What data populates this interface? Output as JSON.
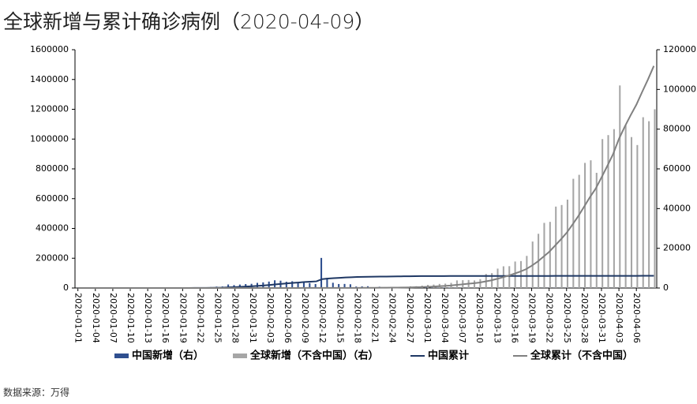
{
  "chart_data": {
    "type": "bar_line_dual",
    "title": "全球新增与累计确诊病例（2020-04-09）",
    "source": "数据来源：万得",
    "categories": [
      "2020-01-01",
      null,
      null,
      "2020-01-04",
      null,
      null,
      "2020-01-07",
      null,
      null,
      "2020-01-10",
      null,
      null,
      "2020-01-13",
      null,
      null,
      "2020-01-16",
      null,
      null,
      "2020-01-19",
      null,
      null,
      "2020-01-22",
      null,
      null,
      "2020-01-25",
      null,
      null,
      "2020-01-28",
      null,
      null,
      "2020-01-31",
      null,
      null,
      "2020-02-03",
      null,
      null,
      "2020-02-06",
      null,
      null,
      "2020-02-09",
      null,
      null,
      "2020-02-12",
      null,
      null,
      "2020-02-15",
      null,
      null,
      "2020-02-18",
      null,
      null,
      "2020-02-21",
      null,
      null,
      "2020-02-24",
      null,
      null,
      "2020-02-27",
      null,
      null,
      "2020-03-01",
      null,
      null,
      "2020-03-04",
      null,
      null,
      "2020-03-07",
      null,
      null,
      "2020-03-10",
      null,
      null,
      "2020-03-13",
      null,
      null,
      "2020-03-16",
      null,
      null,
      "2020-03-19",
      null,
      null,
      "2020-03-22",
      null,
      null,
      "2020-03-25",
      null,
      null,
      "2020-03-28",
      null,
      null,
      "2020-03-31",
      null,
      null,
      "2020-04-03",
      null,
      null,
      "2020-04-06",
      null,
      null,
      null
    ],
    "series": [
      {
        "name": "中国新增（右）",
        "kind": "bar",
        "axis": "y2",
        "color": "#2f4f8f",
        "values": [
          0,
          0,
          0,
          0,
          0,
          0,
          0,
          0,
          0,
          0,
          0,
          0,
          0,
          0,
          0,
          0,
          0,
          0,
          0,
          77,
          149,
          131,
          259,
          444,
          688,
          769,
          1771,
          1459,
          1737,
          1982,
          2102,
          2590,
          2829,
          3235,
          3887,
          3694,
          3143,
          3399,
          2656,
          3062,
          2478,
          2015,
          15152,
          5090,
          2641,
          2009,
          2048,
          1886,
          749,
          820,
          889,
          397,
          648,
          409,
          508,
          406,
          433,
          327,
          427,
          573,
          202,
          125,
          119,
          139,
          143,
          99,
          44,
          40,
          19,
          24,
          15,
          8,
          11,
          20,
          16,
          21,
          13,
          34,
          39,
          41,
          46,
          39,
          78,
          47,
          67,
          55,
          54,
          45,
          31,
          48,
          36,
          35,
          31,
          19,
          30,
          39,
          32,
          62,
          63,
          42
        ]
      },
      {
        "name": "全球新增（不含中国）（右）",
        "kind": "bar",
        "axis": "y2",
        "color": "#a6a6a6",
        "values": [
          0,
          0,
          0,
          0,
          0,
          0,
          0,
          0,
          0,
          0,
          0,
          0,
          1,
          0,
          0,
          1,
          1,
          0,
          1,
          3,
          2,
          1,
          3,
          5,
          10,
          11,
          12,
          16,
          8,
          14,
          24,
          14,
          16,
          15,
          25,
          42,
          23,
          29,
          35,
          47,
          33,
          36,
          17,
          120,
          15,
          67,
          58,
          87,
          114,
          101,
          161,
          227,
          290,
          365,
          264,
          389,
          511,
          869,
          911,
          1214,
          1583,
          1735,
          2065,
          2211,
          2589,
          3839,
          3932,
          4027,
          3805,
          4453,
          7069,
          7485,
          9762,
          10925,
          10996,
          13340,
          13572,
          16170,
          23400,
          27300,
          32800,
          33300,
          41000,
          41800,
          44500,
          55000,
          57000,
          63000,
          64300,
          58000,
          75000,
          77000,
          80000,
          102000,
          82000,
          76000,
          72000,
          86000,
          84000,
          90000
        ]
      },
      {
        "name": "中国累计",
        "kind": "line",
        "color": "#1f3864",
        "values": [
          0,
          0,
          0,
          0,
          0,
          0,
          0,
          0,
          0,
          0,
          0,
          0,
          0,
          0,
          0,
          45,
          62,
          121,
          198,
          291,
          440,
          571,
          830,
          1287,
          1975,
          2744,
          4515,
          5974,
          7711,
          9692,
          11791,
          14380,
          17205,
          20438,
          24324,
          28018,
          31161,
          34546,
          37198,
          40171,
          42638,
          44653,
          59804,
          63851,
          66492,
          68500,
          70548,
          72436,
          74185,
          74576,
          75465,
          76288,
          76936,
          77150,
          77658,
          78064,
          78497,
          78824,
          79251,
          79824,
          80026,
          80151,
          80270,
          80409,
          80552,
          80651,
          80695,
          80735,
          80754,
          80778,
          80793,
          80813,
          80824,
          80844,
          80860,
          80881,
          80894,
          80928,
          80967,
          81008,
          81054,
          81093,
          81171,
          81218,
          81285,
          81340,
          81394,
          81439,
          81470,
          81518,
          81554,
          81589,
          81620,
          81639,
          81669,
          81708,
          81740,
          81802,
          81865,
          81907
        ]
      },
      {
        "name": "全球累计（不含中国）",
        "kind": "line",
        "color": "#808080",
        "values": [
          0,
          0,
          0,
          0,
          0,
          0,
          0,
          0,
          0,
          0,
          0,
          0,
          1,
          1,
          1,
          2,
          3,
          3,
          4,
          7,
          9,
          10,
          13,
          18,
          28,
          39,
          51,
          67,
          75,
          89,
          113,
          127,
          143,
          158,
          183,
          225,
          248,
          277,
          312,
          359,
          392,
          428,
          445,
          565,
          580,
          647,
          705,
          792,
          906,
          1007,
          1168,
          1395,
          1685,
          2050,
          2314,
          2703,
          3214,
          4083,
          4994,
          6208,
          7791,
          9526,
          11591,
          13802,
          16391,
          20230,
          24162,
          28189,
          31994,
          36447,
          43516,
          51001,
          60763,
          71688,
          82684,
          96024,
          109596,
          125766,
          149166,
          176466,
          209266,
          242566,
          283566,
          325366,
          369866,
          424866,
          481866,
          544866,
          609166,
          667166,
          742166,
          819166,
          899166,
          1001166,
          1083166,
          1159166,
          1231166,
          1317166,
          1401166,
          1491166
        ]
      }
    ],
    "ylim": [
      0,
      1600000
    ],
    "yticks": [
      0,
      200000,
      400000,
      600000,
      800000,
      1000000,
      1200000,
      1400000,
      1600000
    ],
    "y2lim": [
      0,
      120000
    ],
    "y2ticks": [
      0,
      20000,
      40000,
      60000,
      80000,
      100000,
      120000
    ],
    "legend": "bottom"
  }
}
